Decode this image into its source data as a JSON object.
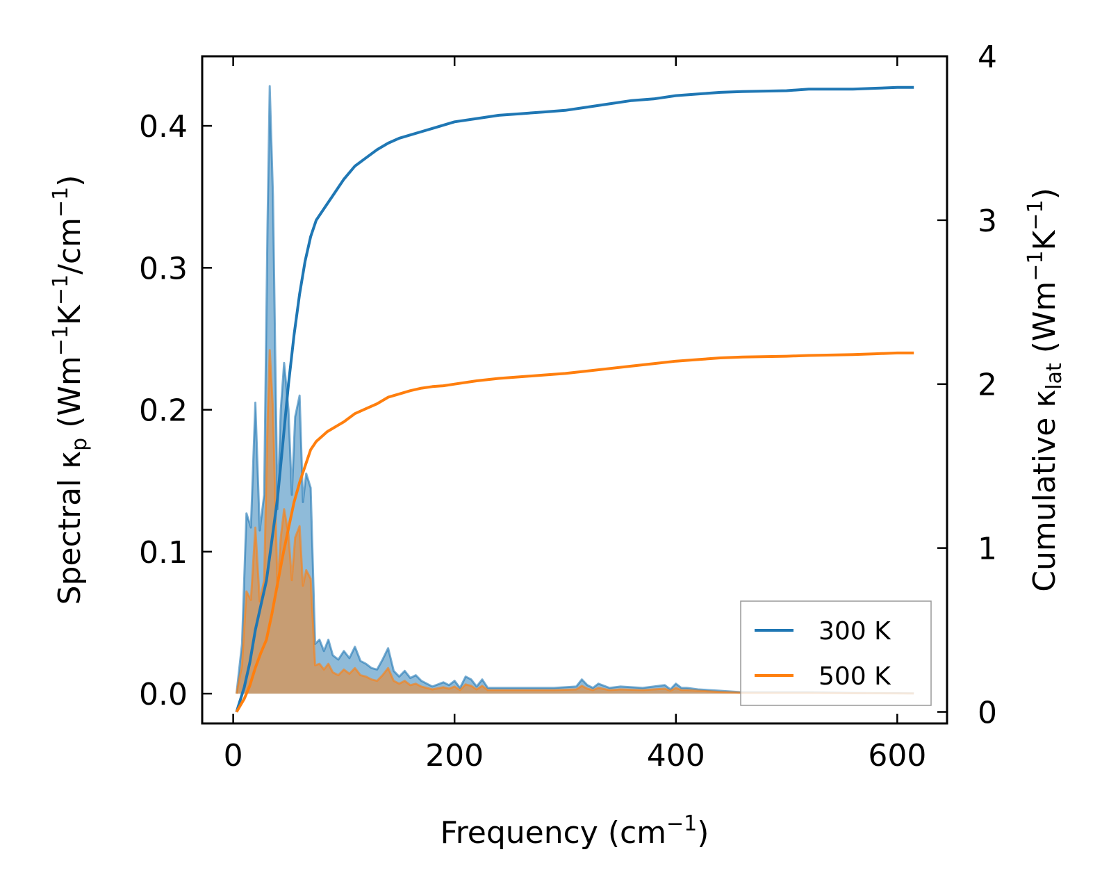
{
  "chart_data": {
    "type": "area",
    "title": "",
    "xlabel": {
      "main": "Frequency (cm",
      "sup": "−1",
      "tail": ")"
    },
    "ylabel_left": {
      "parts": [
        {
          "text": "Spectral κ",
          "role": "normal"
        },
        {
          "text": "p",
          "role": "sub"
        },
        {
          "text": " (Wm",
          "role": "normal"
        },
        {
          "text": "−1",
          "role": "sup"
        },
        {
          "text": "K",
          "role": "normal"
        },
        {
          "text": "−1",
          "role": "sup"
        },
        {
          "text": "/cm",
          "role": "normal"
        },
        {
          "text": "−1",
          "role": "sup"
        },
        {
          "text": ")",
          "role": "normal"
        }
      ]
    },
    "ylabel_right": {
      "parts": [
        {
          "text": "Cumulative κ",
          "role": "normal"
        },
        {
          "text": "lat",
          "role": "sub"
        },
        {
          "text": " (Wm",
          "role": "normal"
        },
        {
          "text": "−1",
          "role": "sup"
        },
        {
          "text": "K",
          "role": "normal"
        },
        {
          "text": "−1",
          "role": "sup"
        },
        {
          "text": ")",
          "role": "normal"
        }
      ]
    },
    "xlim": [
      -28,
      645
    ],
    "ylim_left": [
      -0.021,
      0.449
    ],
    "ylim_right": [
      -0.07,
      4.0
    ],
    "xticks": [
      0,
      200,
      400,
      600
    ],
    "xtick_labels": [
      "0",
      "200",
      "400",
      "600"
    ],
    "yticks_left": [
      0.0,
      0.1,
      0.2,
      0.3,
      0.4
    ],
    "ytick_labels_left": [
      "0.0",
      "0.1",
      "0.2",
      "0.3",
      "0.4"
    ],
    "yticks_right": [
      0,
      1,
      2,
      3,
      4
    ],
    "ytick_labels_right": [
      "0",
      "1",
      "2",
      "3",
      "4"
    ],
    "legend_position": "lower-right",
    "legend": [
      "300 K",
      "500 K"
    ],
    "series": [
      {
        "name": "300 K",
        "color": "#1f77b4",
        "spectral": {
          "x": [
            3,
            8,
            12,
            16,
            20,
            24,
            28,
            31,
            33,
            36,
            40,
            43,
            46,
            50,
            53,
            56,
            60,
            63,
            66,
            70,
            74,
            78,
            82,
            86,
            90,
            95,
            100,
            105,
            110,
            115,
            120,
            125,
            130,
            135,
            140,
            145,
            150,
            155,
            160,
            165,
            170,
            180,
            190,
            195,
            200,
            205,
            210,
            215,
            220,
            225,
            230,
            240,
            250,
            270,
            290,
            310,
            315,
            320,
            325,
            330,
            340,
            350,
            370,
            390,
            395,
            400,
            405,
            410,
            420,
            440,
            460,
            500,
            520,
            560,
            600,
            615
          ],
          "y": [
            0,
            0.035,
            0.127,
            0.117,
            0.205,
            0.115,
            0.14,
            0.33,
            0.428,
            0.35,
            0.13,
            0.2,
            0.233,
            0.2,
            0.14,
            0.195,
            0.21,
            0.135,
            0.155,
            0.145,
            0.035,
            0.038,
            0.03,
            0.038,
            0.027,
            0.024,
            0.03,
            0.025,
            0.033,
            0.023,
            0.021,
            0.018,
            0.017,
            0.024,
            0.032,
            0.016,
            0.012,
            0.016,
            0.011,
            0.013,
            0.009,
            0.005,
            0.008,
            0.006,
            0.009,
            0.004,
            0.012,
            0.01,
            0.005,
            0.01,
            0.004,
            0.004,
            0.004,
            0.004,
            0.004,
            0.005,
            0.01,
            0.006,
            0.004,
            0.007,
            0.004,
            0.005,
            0.004,
            0.006,
            0.003,
            0.007,
            0.004,
            0.004,
            0.003,
            0.002,
            0.001,
            0.001,
            0.001,
            0.0005,
            0.0003,
            0.0002
          ]
        },
        "cumulative": {
          "x": [
            3,
            10,
            15,
            20,
            25,
            30,
            35,
            40,
            45,
            50,
            55,
            60,
            65,
            70,
            75,
            80,
            85,
            90,
            95,
            100,
            110,
            120,
            130,
            140,
            150,
            160,
            170,
            180,
            190,
            200,
            220,
            240,
            260,
            280,
            300,
            320,
            340,
            360,
            380,
            400,
            420,
            440,
            460,
            500,
            520,
            560,
            580,
            600,
            615
          ],
          "y": [
            0,
            0.15,
            0.3,
            0.5,
            0.65,
            0.8,
            1.05,
            1.3,
            1.65,
            2.0,
            2.3,
            2.55,
            2.75,
            2.9,
            3.0,
            3.05,
            3.1,
            3.15,
            3.2,
            3.25,
            3.33,
            3.38,
            3.43,
            3.47,
            3.5,
            3.52,
            3.54,
            3.56,
            3.58,
            3.6,
            3.62,
            3.64,
            3.65,
            3.66,
            3.67,
            3.69,
            3.71,
            3.73,
            3.74,
            3.76,
            3.77,
            3.78,
            3.785,
            3.79,
            3.8,
            3.8,
            3.805,
            3.81,
            3.81
          ]
        }
      },
      {
        "name": "500 K",
        "color": "#ff7f0e",
        "spectral": {
          "x": [
            3,
            8,
            12,
            16,
            20,
            24,
            28,
            31,
            33,
            36,
            40,
            43,
            46,
            50,
            53,
            56,
            60,
            63,
            66,
            70,
            74,
            78,
            82,
            86,
            90,
            95,
            100,
            105,
            110,
            115,
            120,
            125,
            130,
            135,
            140,
            145,
            150,
            155,
            160,
            165,
            170,
            180,
            190,
            195,
            200,
            205,
            210,
            215,
            220,
            225,
            230,
            240,
            250,
            270,
            290,
            310,
            315,
            320,
            325,
            330,
            340,
            350,
            370,
            390,
            395,
            400,
            405,
            410,
            420,
            440,
            460,
            500,
            520,
            560,
            600,
            615
          ],
          "y": [
            0,
            0.02,
            0.072,
            0.066,
            0.117,
            0.065,
            0.08,
            0.19,
            0.242,
            0.2,
            0.075,
            0.11,
            0.13,
            0.112,
            0.08,
            0.11,
            0.118,
            0.076,
            0.087,
            0.081,
            0.02,
            0.021,
            0.017,
            0.021,
            0.015,
            0.013,
            0.017,
            0.014,
            0.018,
            0.013,
            0.012,
            0.01,
            0.009,
            0.013,
            0.018,
            0.009,
            0.007,
            0.009,
            0.006,
            0.007,
            0.005,
            0.003,
            0.0045,
            0.0035,
            0.005,
            0.0025,
            0.0065,
            0.0055,
            0.003,
            0.0055,
            0.0025,
            0.0025,
            0.0025,
            0.0025,
            0.0025,
            0.003,
            0.0055,
            0.0035,
            0.0025,
            0.004,
            0.0025,
            0.003,
            0.0025,
            0.0035,
            0.002,
            0.004,
            0.0025,
            0.0025,
            0.002,
            0.0012,
            0.0006,
            0.0006,
            0.0006,
            0.0003,
            0.0002,
            0.0001
          ]
        },
        "cumulative": {
          "x": [
            3,
            10,
            15,
            20,
            25,
            30,
            35,
            40,
            45,
            50,
            55,
            60,
            65,
            70,
            75,
            80,
            85,
            90,
            95,
            100,
            110,
            120,
            130,
            140,
            150,
            160,
            170,
            180,
            190,
            200,
            220,
            240,
            260,
            280,
            300,
            320,
            340,
            360,
            380,
            400,
            420,
            440,
            460,
            500,
            520,
            560,
            580,
            600,
            615
          ],
          "y": [
            0,
            0.08,
            0.16,
            0.27,
            0.36,
            0.44,
            0.6,
            0.78,
            0.96,
            1.12,
            1.28,
            1.4,
            1.5,
            1.6,
            1.65,
            1.68,
            1.71,
            1.73,
            1.75,
            1.77,
            1.82,
            1.85,
            1.88,
            1.92,
            1.94,
            1.96,
            1.975,
            1.985,
            1.99,
            2.0,
            2.02,
            2.035,
            2.045,
            2.055,
            2.065,
            2.08,
            2.095,
            2.11,
            2.125,
            2.14,
            2.15,
            2.16,
            2.165,
            2.17,
            2.175,
            2.18,
            2.185,
            2.19,
            2.19
          ]
        }
      }
    ]
  }
}
